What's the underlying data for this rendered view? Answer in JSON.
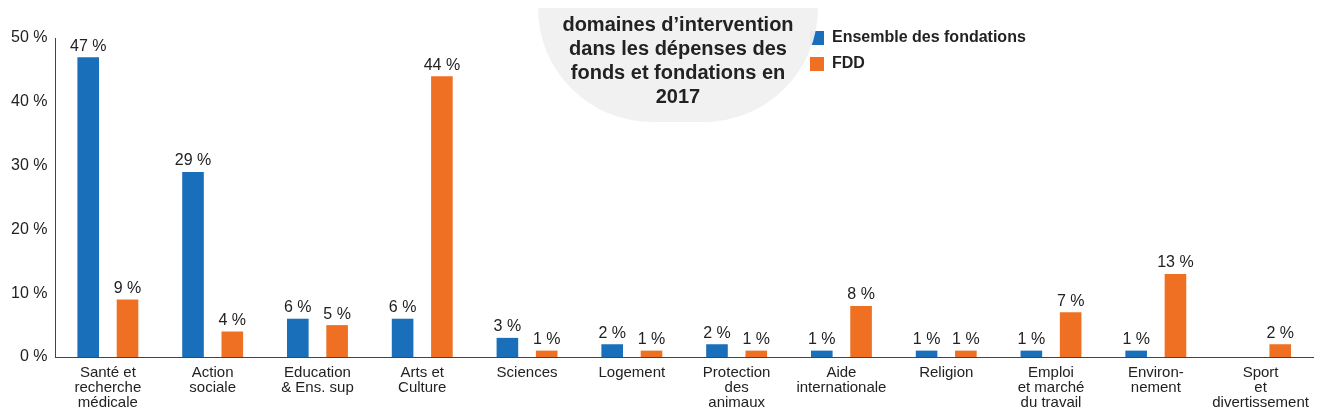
{
  "chart_data": {
    "type": "bar",
    "title": "domaines d’intervention dans les dépenses des fonds et fondations en 2017",
    "categories": [
      "Santé et\nrecherche\nmédicale",
      "Action\nsociale",
      "Education\n& Ens. sup",
      "Arts et\nCulture",
      "Sciences",
      "Logement",
      "Protection\ndes\nanimaux",
      "Aide\ninternationale",
      "Religion",
      "Emploi\net marché\ndu travail",
      "Environ-\nnement",
      "Sport\net\ndivertissement"
    ],
    "series": [
      {
        "name": "Ensemble des fondations",
        "color": "#1a6fba",
        "values": [
          47,
          29,
          6,
          6,
          3,
          2,
          2,
          1,
          1,
          1,
          1,
          null
        ],
        "value_labels": [
          "47 %",
          "29 %",
          "6 %",
          "6 %",
          "3 %",
          "2 %",
          "2 %",
          "1 %",
          "1 %",
          "1 %",
          "1 %",
          null
        ]
      },
      {
        "name": "FDD",
        "color": "#f07023",
        "values": [
          9,
          4,
          5,
          44,
          1,
          1,
          1,
          8,
          1,
          7,
          13,
          2
        ],
        "value_labels": [
          "9 %",
          "4 %",
          "5 %",
          "44 %",
          "1 %",
          "1 %",
          "1 %",
          "8 %",
          "1 %",
          "7 %",
          "13 %",
          "2 %"
        ]
      }
    ],
    "ylim": [
      0,
      50
    ],
    "yticks": [
      {
        "value": 0,
        "label": "0 %"
      },
      {
        "value": 10,
        "label": "10 %"
      },
      {
        "value": 20,
        "label": "20 %"
      },
      {
        "value": 30,
        "label": "30 %"
      },
      {
        "value": 40,
        "label": "40 %"
      },
      {
        "value": 50,
        "label": "50 %"
      }
    ],
    "grid": false,
    "legend": "top right"
  }
}
